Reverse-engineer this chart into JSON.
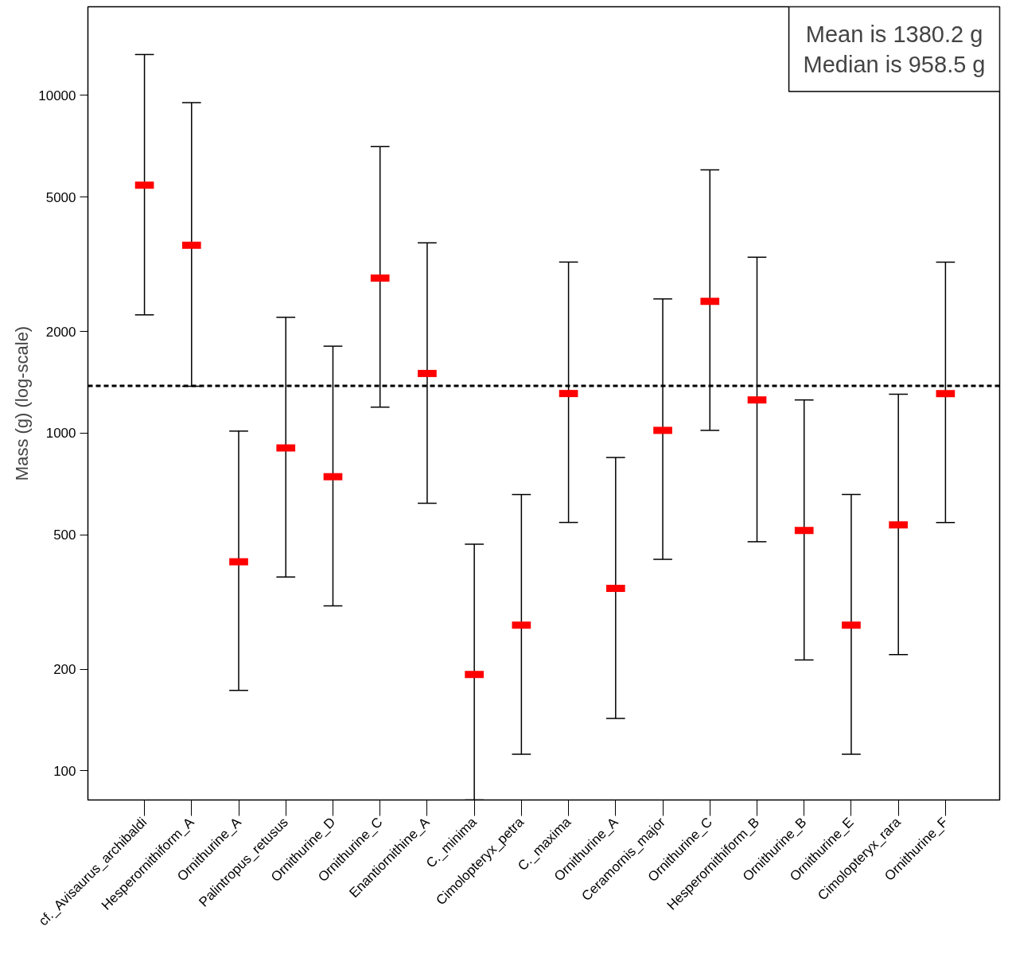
{
  "chart_data": {
    "type": "scatter",
    "ylabel": "Mass (g) (log-scale)",
    "log": "y",
    "categories": [
      "cf._Avisaurus_archibaldi",
      "Hesperornithiform_A",
      "Ornithurine_A",
      "Palintropus_retusus",
      "Ornithurine_D",
      "Ornithurine_C",
      "Enantiornithine_A",
      "C._minima",
      "Cimolopteryx_petra",
      "C._maxima",
      "Ornithurine_A",
      "Ceramornis_major",
      "Ornithurine_C",
      "Hesperornithiform_B",
      "Ornithurine_B",
      "Ornithurine_E",
      "Cimolopteryx_rara",
      "Ornithurine_F"
    ],
    "series": [
      {
        "color": "#ff0000",
        "values": [
          5420,
          3600,
          416,
          904,
          743,
          2878,
          1502,
          193,
          270,
          1310,
          347,
          1019,
          2456,
          1254,
          515,
          270,
          535,
          1310
        ],
        "errors": [
          [
            2239,
            13210
          ],
          [
            1377,
            9520
          ],
          [
            173,
            1014
          ],
          [
            375,
            2203
          ],
          [
            308,
            1809
          ],
          [
            1194,
            7050
          ],
          [
            620,
            3660
          ],
          [
            82,
            469
          ],
          [
            112,
            658
          ],
          [
            544,
            3210
          ],
          [
            143,
            847
          ],
          [
            423,
            2497
          ],
          [
            1019,
            6020
          ],
          [
            477,
            3318
          ],
          [
            213,
            1254
          ],
          [
            112,
            658
          ],
          [
            221,
            1303
          ],
          [
            544,
            3210
          ]
        ]
      }
    ],
    "ylim": [
      82,
      18300
    ],
    "yticks": [
      100,
      200,
      500,
      1000,
      2000,
      5000,
      10000
    ],
    "grid": false,
    "ref_lines": [
      {
        "axis": "y",
        "value": 1380.2,
        "color": "#000000",
        "line_style": "dashed"
      }
    ],
    "annotations": [
      "Mean is 1380.2 g",
      "Median is 958.5 g"
    ]
  }
}
